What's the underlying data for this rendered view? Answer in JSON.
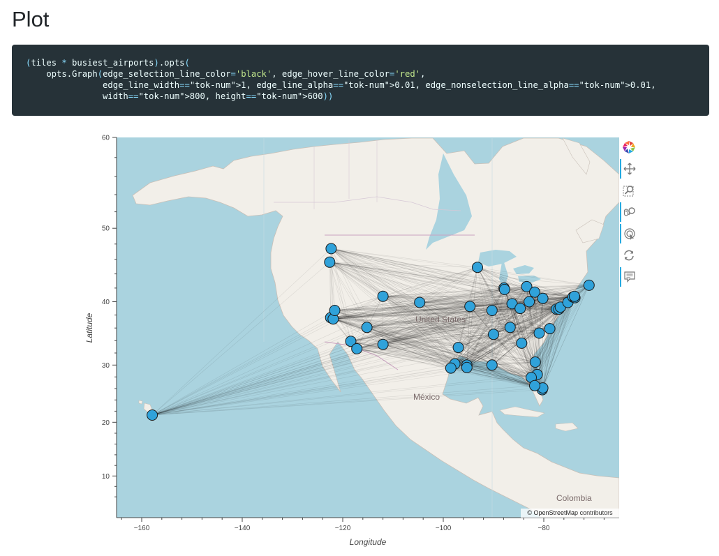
{
  "page": {
    "title": "Plot",
    "code_lines": [
      "(tiles * busiest_airports).opts(",
      "    opts.Graph(edge_selection_line_color='black', edge_hover_line_color='red',",
      "               edge_line_width=1, edge_line_alpha=0.01, edge_nonselection_line_alpha=0.01,",
      "               width=800, height=600))"
    ]
  },
  "plot": {
    "xlabel": "Longitude",
    "ylabel": "Latitude",
    "map_labels": [
      "United States",
      "México",
      "Colombia"
    ],
    "attribution_symbol": "©",
    "attribution_link": "OpenStreetMap",
    "attribution_rest": "contributors",
    "colors": {
      "node_fill": "#30a2da",
      "node_stroke": "#1a1a1a",
      "ocean": "#aad3df",
      "land": "#f2efe9",
      "active_tool": "#26aae1"
    },
    "toolbar": [
      {
        "name": "bokeh-logo-icon",
        "active": false
      },
      {
        "name": "pan-icon",
        "active": true
      },
      {
        "name": "box-zoom-icon",
        "active": false
      },
      {
        "name": "wheel-zoom-icon",
        "active": true
      },
      {
        "name": "tap-icon",
        "active": true
      },
      {
        "name": "reset-icon",
        "active": false
      },
      {
        "name": "hover-icon",
        "active": true
      }
    ]
  },
  "chart_data": {
    "type": "scatter",
    "xlim": [
      -165,
      -65
    ],
    "ylim": [
      2,
      60
    ],
    "xticks": [
      -160,
      -140,
      -120,
      -100,
      -80
    ],
    "yticks": [
      10,
      20,
      30,
      40,
      50,
      60
    ],
    "grid": false,
    "nodes": [
      {
        "lon": -122.3,
        "lat": 47.4
      },
      {
        "lon": -122.6,
        "lat": 45.6
      },
      {
        "lon": -122.4,
        "lat": 37.6
      },
      {
        "lon": -121.9,
        "lat": 37.4
      },
      {
        "lon": -121.6,
        "lat": 38.7
      },
      {
        "lon": -118.4,
        "lat": 33.9
      },
      {
        "lon": -117.2,
        "lat": 32.7
      },
      {
        "lon": -115.2,
        "lat": 36.1
      },
      {
        "lon": -112.0,
        "lat": 33.4
      },
      {
        "lon": -112.0,
        "lat": 40.8
      },
      {
        "lon": -104.7,
        "lat": 39.9
      },
      {
        "lon": -157.9,
        "lat": 21.3
      },
      {
        "lon": -93.2,
        "lat": 44.9
      },
      {
        "lon": -94.7,
        "lat": 39.3
      },
      {
        "lon": -97.0,
        "lat": 32.9
      },
      {
        "lon": -95.3,
        "lat": 30.0
      },
      {
        "lon": -95.3,
        "lat": 29.6
      },
      {
        "lon": -97.7,
        "lat": 30.2
      },
      {
        "lon": -98.5,
        "lat": 29.5
      },
      {
        "lon": -90.3,
        "lat": 38.7
      },
      {
        "lon": -90.3,
        "lat": 30.0
      },
      {
        "lon": -90.0,
        "lat": 35.0
      },
      {
        "lon": -87.9,
        "lat": 42.0
      },
      {
        "lon": -87.8,
        "lat": 41.8
      },
      {
        "lon": -86.3,
        "lat": 39.7
      },
      {
        "lon": -84.7,
        "lat": 39.0
      },
      {
        "lon": -83.4,
        "lat": 42.2
      },
      {
        "lon": -82.9,
        "lat": 40.0
      },
      {
        "lon": -81.8,
        "lat": 41.4
      },
      {
        "lon": -80.2,
        "lat": 40.5
      },
      {
        "lon": -86.7,
        "lat": 36.1
      },
      {
        "lon": -84.4,
        "lat": 33.6
      },
      {
        "lon": -80.9,
        "lat": 35.2
      },
      {
        "lon": -78.8,
        "lat": 35.9
      },
      {
        "lon": -77.5,
        "lat": 38.9
      },
      {
        "lon": -77.0,
        "lat": 38.9
      },
      {
        "lon": -76.7,
        "lat": 39.2
      },
      {
        "lon": -75.2,
        "lat": 39.9
      },
      {
        "lon": -74.2,
        "lat": 40.7
      },
      {
        "lon": -73.8,
        "lat": 40.6
      },
      {
        "lon": -73.9,
        "lat": 40.8
      },
      {
        "lon": -71.0,
        "lat": 42.4
      },
      {
        "lon": -81.7,
        "lat": 30.5
      },
      {
        "lon": -81.3,
        "lat": 28.4
      },
      {
        "lon": -82.5,
        "lat": 27.9
      },
      {
        "lon": -80.3,
        "lat": 25.8
      },
      {
        "lon": -80.2,
        "lat": 26.1
      },
      {
        "lon": -81.8,
        "lat": 26.5
      }
    ]
  }
}
